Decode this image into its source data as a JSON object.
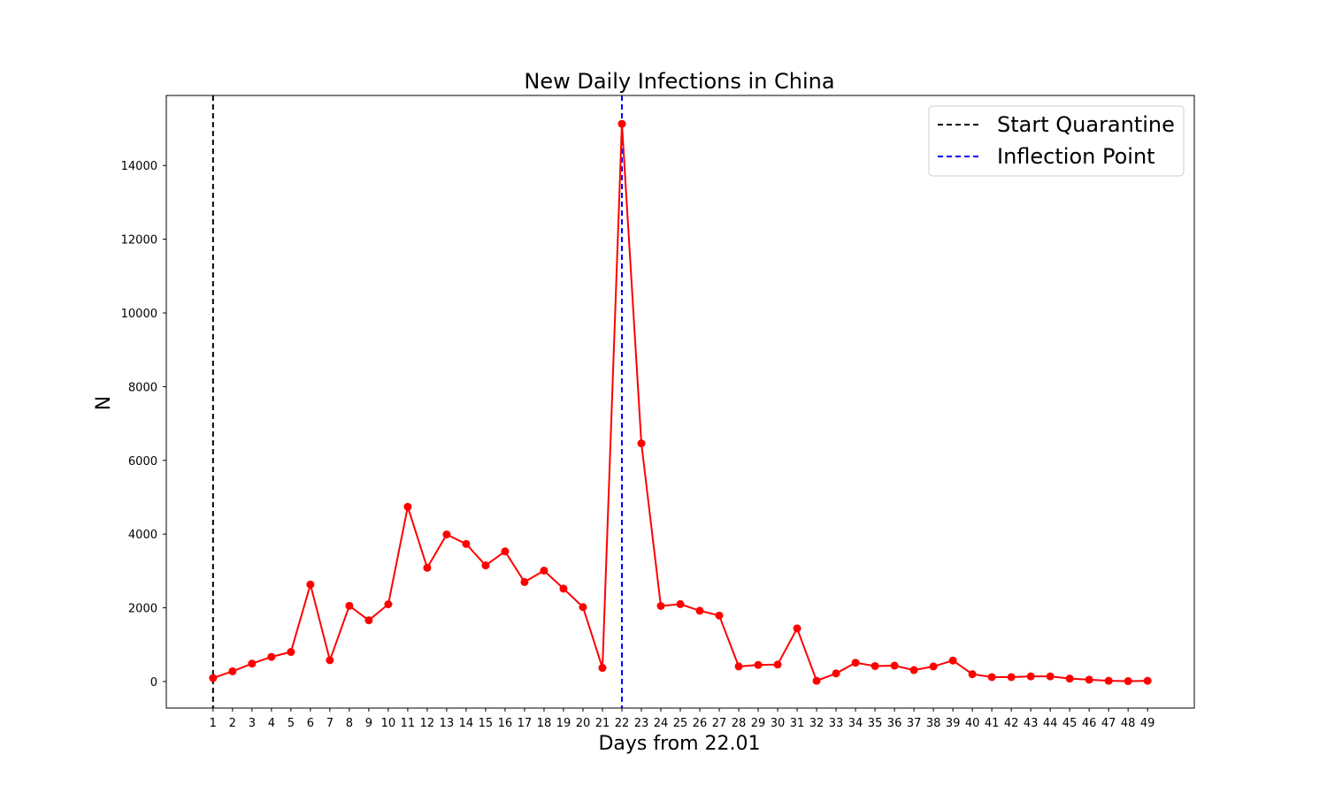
{
  "chart_data": {
    "type": "line",
    "title": "New Daily Infections in China",
    "xlabel": "Days from 22.01",
    "ylabel": "N",
    "x": [
      1,
      2,
      3,
      4,
      5,
      6,
      7,
      8,
      9,
      10,
      11,
      12,
      13,
      14,
      15,
      16,
      17,
      18,
      19,
      20,
      21,
      22,
      23,
      24,
      25,
      26,
      27,
      28,
      29,
      30,
      31,
      32,
      33,
      34,
      35,
      36,
      37,
      38,
      39,
      40,
      41,
      42,
      43,
      44,
      45,
      46,
      47,
      48,
      49
    ],
    "series": [
      {
        "name": "",
        "color": "#ff0000",
        "marker": "circle",
        "values": [
          95,
          277,
          486,
          669,
          802,
          2632,
          578,
          2054,
          1661,
          2095,
          4740,
          3087,
          3991,
          3733,
          3150,
          3530,
          2700,
          3010,
          2520,
          2020,
          370,
          15130,
          6460,
          2050,
          2100,
          1920,
          1790,
          410,
          450,
          460,
          1440,
          20,
          220,
          510,
          420,
          430,
          310,
          410,
          570,
          200,
          120,
          120,
          140,
          140,
          80,
          50,
          20,
          10,
          20
        ]
      }
    ],
    "vlines": [
      {
        "x": 1,
        "label": "Start Quarantine",
        "color": "#000000",
        "style": "dashed"
      },
      {
        "x": 22,
        "label": "Inflection Point",
        "color": "#0000ff",
        "style": "dashed"
      }
    ],
    "xlim": [
      -1.4,
      51.4
    ],
    "ylim": [
      -720,
      15900
    ],
    "yticks": [
      0,
      2000,
      4000,
      6000,
      8000,
      10000,
      12000,
      14000
    ],
    "grid": false,
    "legend_position": "top-right"
  }
}
